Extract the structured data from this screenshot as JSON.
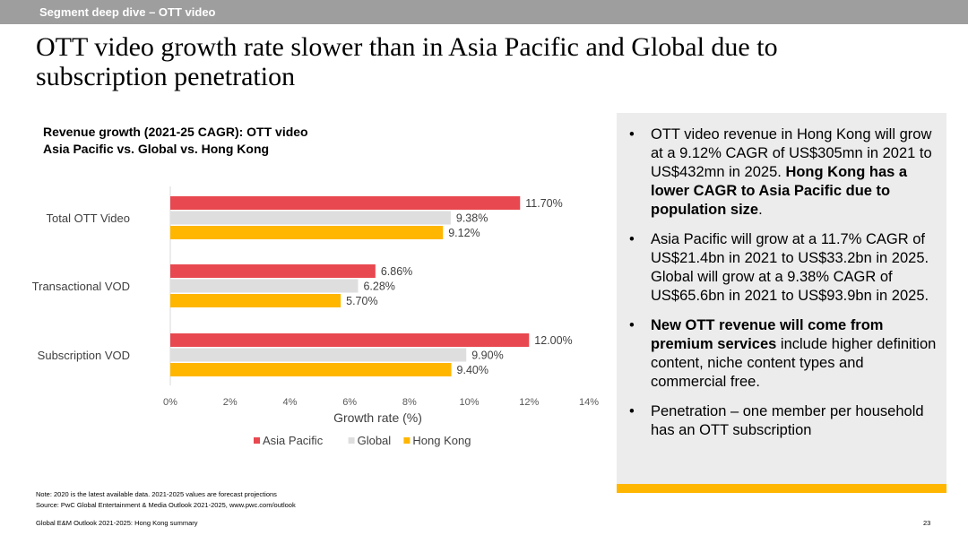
{
  "section_label": "Segment deep dive – OTT video",
  "headline": "OTT video growth rate slower than in Asia Pacific and Global due to subscription penetration",
  "chart_title_line1": "Revenue growth (2021-25 CAGR): OTT video",
  "chart_title_line2": "Asia Pacific vs. Global vs. Hong Kong",
  "chart_data": {
    "type": "bar",
    "orientation": "horizontal",
    "categories": [
      "Total OTT Video",
      "Transactional VOD",
      "Subscription VOD"
    ],
    "series": [
      {
        "name": "Asia Pacific",
        "color": "#e8484f",
        "values": [
          11.7,
          6.86,
          12.0
        ],
        "labels": [
          "11.70%",
          "6.86%",
          "12.00%"
        ]
      },
      {
        "name": "Global",
        "color": "#dedede",
        "values": [
          9.38,
          6.28,
          9.9
        ],
        "labels": [
          "9.38%",
          "6.28%",
          "9.90%"
        ]
      },
      {
        "name": "Hong Kong",
        "color": "#ffb600",
        "values": [
          9.12,
          5.7,
          9.4
        ],
        "labels": [
          "9.12%",
          "5.70%",
          "9.40%"
        ]
      }
    ],
    "xlabel": "Growth rate (%)",
    "xlim": [
      0,
      14
    ],
    "xticks": [
      0,
      2,
      4,
      6,
      8,
      10,
      12,
      14
    ],
    "xtick_labels": [
      "0%",
      "2%",
      "4%",
      "6%",
      "8%",
      "10%",
      "12%",
      "14%"
    ],
    "legend_position": "bottom",
    "grid": false
  },
  "bullets": {
    "b1_pre": "OTT video revenue in Hong Kong will grow at a 9.12% CAGR of US$305mn in 2021 to US$432mn in 2025. ",
    "b1_bold": "Hong Kong has a lower CAGR to Asia Pacific due to population size",
    "b1_post": ".",
    "b2": "Asia Pacific will grow at a 11.7% CAGR of US$21.4bn in 2021 to US$33.2bn in 2025. Global will grow at a 9.38% CAGR of US$65.6bn in 2021 to US$93.9bn in 2025.",
    "b3_bold": "New OTT revenue will come from premium services",
    "b3_post": " include higher definition content, niche content types and commercial free.",
    "b4": "Penetration – one member per household has an OTT subscription"
  },
  "note": "Note: 2020 is the latest available data. 2021-2025 values are forecast projections",
  "source": "Source: PwC Global Entertainment & Media Outlook 2021-2025, www.pwc.com/outlook",
  "footer": "Global E&M Outlook 2021-2025: Hong Kong summary",
  "page_number": "23"
}
